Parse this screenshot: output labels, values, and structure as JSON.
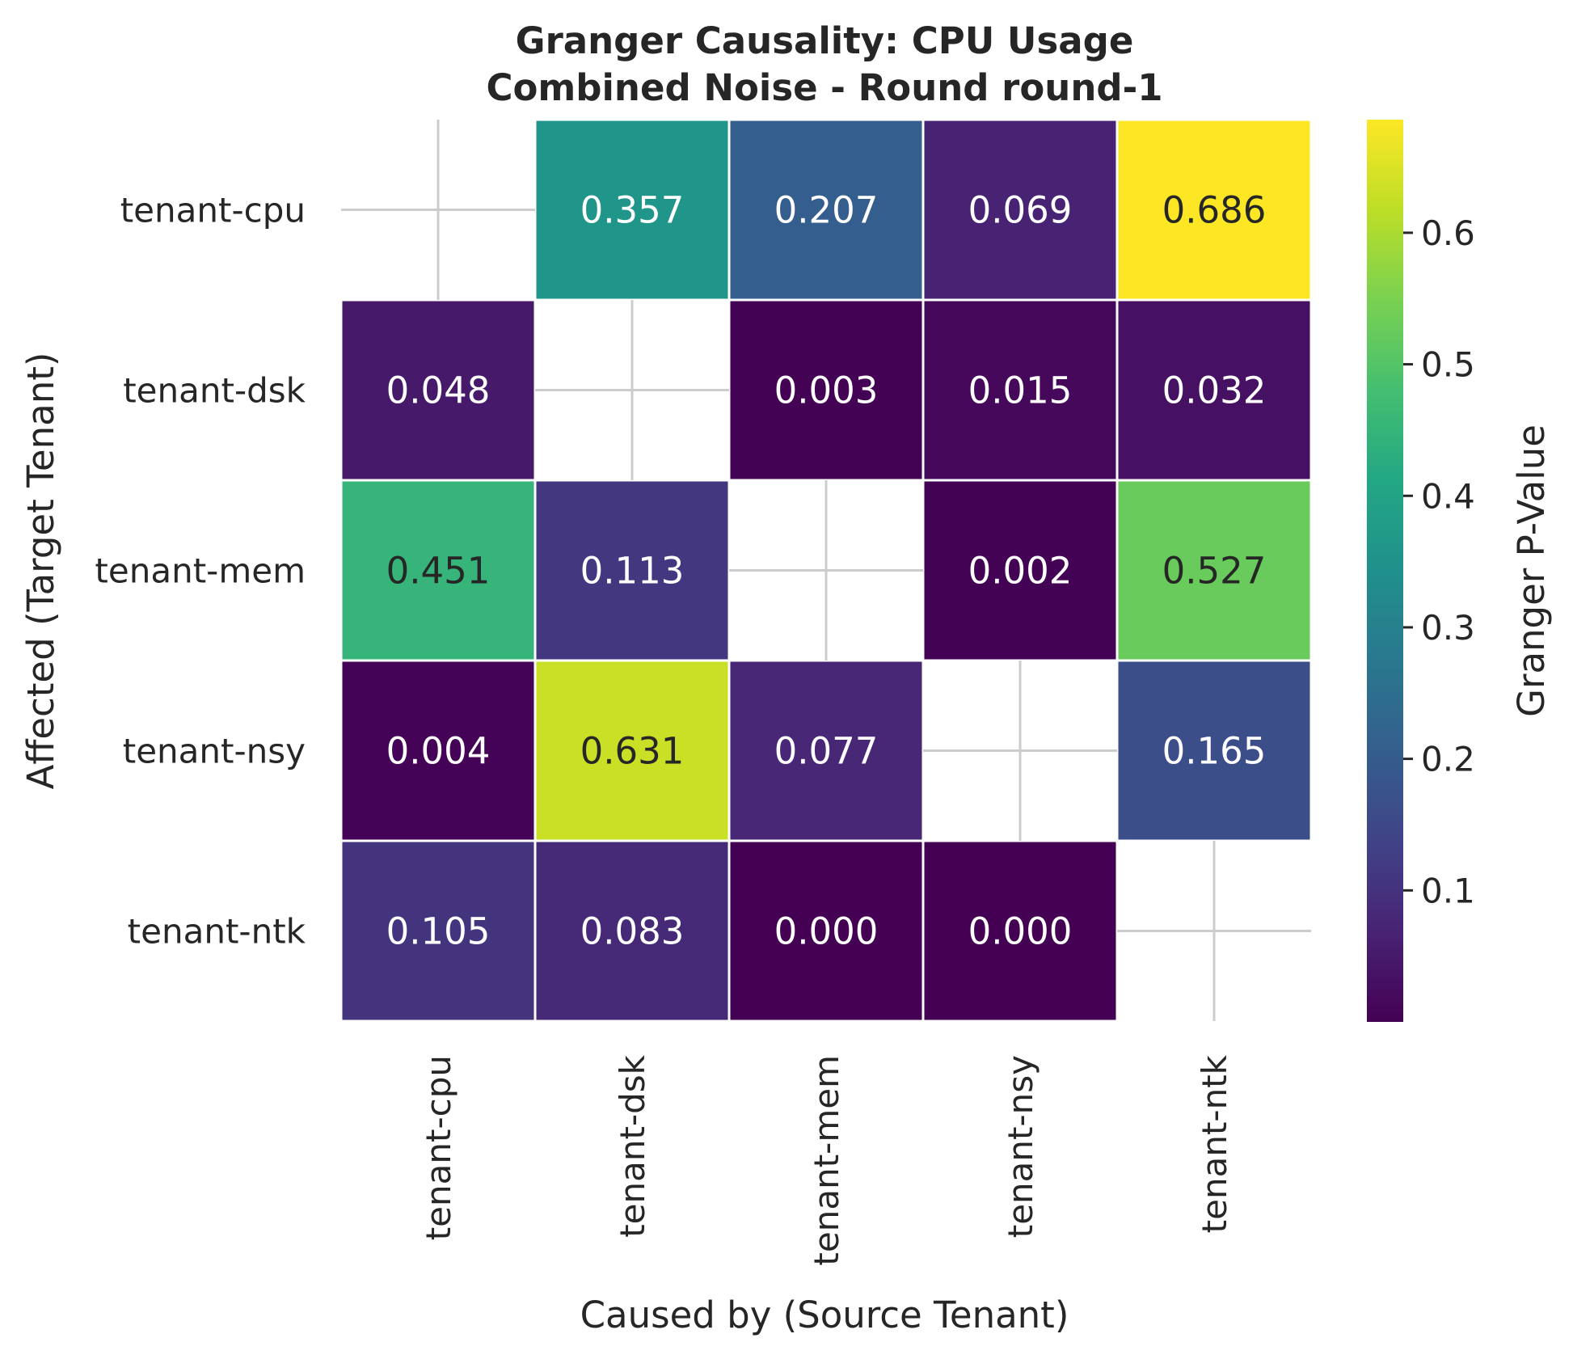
{
  "chart_data": {
    "type": "heatmap",
    "title": "Granger Causality: CPU Usage",
    "subtitle": "Combined Noise - Round round-1",
    "xlabel": "Caused by (Source Tenant)",
    "ylabel": "Affected (Target Tenant)",
    "x_categories": [
      "tenant-cpu",
      "tenant-dsk",
      "tenant-mem",
      "tenant-nsy",
      "tenant-ntk"
    ],
    "y_categories": [
      "tenant-cpu",
      "tenant-dsk",
      "tenant-mem",
      "tenant-nsy",
      "tenant-ntk"
    ],
    "values": [
      [
        null,
        0.357,
        0.207,
        0.069,
        0.686
      ],
      [
        0.048,
        null,
        0.003,
        0.015,
        0.032
      ],
      [
        0.451,
        0.113,
        null,
        0.002,
        0.527
      ],
      [
        0.004,
        0.631,
        0.077,
        null,
        0.165
      ],
      [
        0.105,
        0.083,
        0.0,
        0.0,
        null
      ]
    ],
    "colorbar": {
      "label": "Granger P-Value",
      "colormap": "viridis",
      "vmin": 0.0,
      "vmax": 0.686,
      "ticks": [
        0.1,
        0.2,
        0.3,
        0.4,
        0.5,
        0.6
      ],
      "tick_labels": [
        "0.1",
        "0.2",
        "0.3",
        "0.4",
        "0.5",
        "0.6"
      ]
    },
    "annotation_text_colors": {
      "dark": "#262626",
      "light": "#ffffff"
    },
    "diagonal_marker_color": "#cccccc",
    "grid": false
  }
}
